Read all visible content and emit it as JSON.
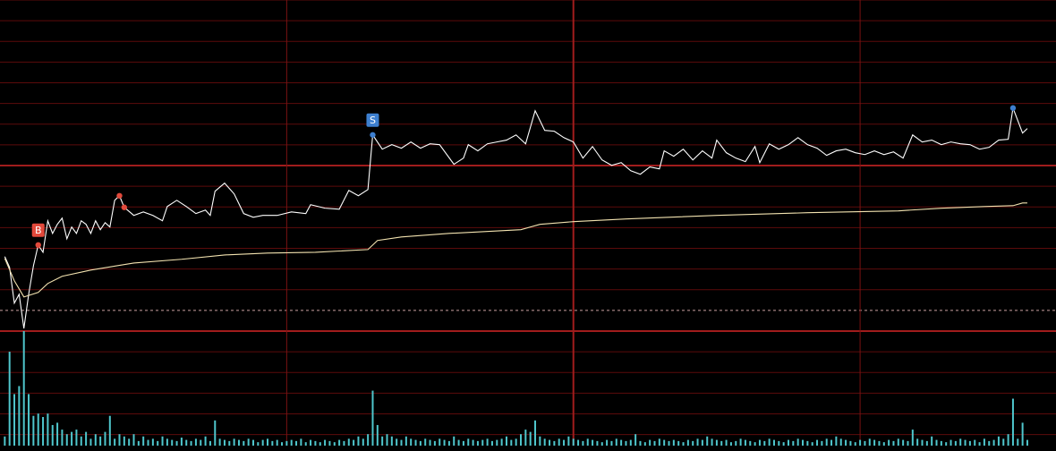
{
  "chart_data": {
    "type": "line",
    "background": "#000000",
    "xlim": [
      0,
      221
    ],
    "ylim": [
      -1,
      15
    ],
    "yticks": [
      -1,
      0,
      1,
      2,
      3,
      4,
      5,
      6,
      7,
      8,
      9,
      10,
      11,
      12,
      13,
      14,
      15
    ],
    "major_yticks": [
      -1,
      7
    ],
    "baseline": 0,
    "xticks": [
      60,
      120,
      180
    ],
    "major_xticks": [
      120
    ],
    "grid": true,
    "grid_color": "#5c0b0b",
    "major_grid_color": "#a01c1c",
    "series": [
      {
        "color": "#ffffff",
        "x": [
          1,
          2,
          3,
          4,
          5,
          6,
          7,
          8,
          9,
          10,
          11,
          12,
          13,
          14,
          15,
          16,
          17,
          18,
          19,
          20,
          21,
          22,
          23,
          24,
          25,
          26,
          28,
          30,
          32,
          34,
          35,
          37,
          39,
          41,
          43,
          44,
          45,
          47,
          49,
          51,
          53,
          55,
          58,
          61,
          64,
          65,
          68,
          71,
          73,
          75,
          77,
          78,
          80,
          82,
          84,
          86,
          88,
          90,
          92,
          95,
          97,
          98,
          100,
          102,
          104,
          106,
          108,
          110,
          112,
          114,
          116,
          118,
          120,
          122,
          124,
          126,
          128,
          130,
          132,
          134,
          136,
          138,
          139,
          141,
          143,
          145,
          147,
          149,
          150,
          152,
          154,
          156,
          158,
          159,
          161,
          163,
          165,
          167,
          169,
          171,
          173,
          175,
          177,
          179,
          181,
          183,
          185,
          187,
          189,
          191,
          193,
          195,
          197,
          199,
          201,
          203,
          205,
          207,
          209,
          211,
          212,
          214,
          215
        ],
        "values": [
          2.6,
          2.08,
          0.35,
          0.78,
          -0.87,
          0.78,
          2.16,
          3.16,
          2.81,
          4.33,
          3.72,
          4.16,
          4.46,
          3.46,
          4.03,
          3.72,
          4.33,
          4.16,
          3.72,
          4.33,
          3.9,
          4.24,
          4.03,
          5.32,
          5.54,
          4.98,
          4.59,
          4.76,
          4.59,
          4.33,
          5.02,
          5.32,
          5.02,
          4.68,
          4.85,
          4.59,
          5.76,
          6.15,
          5.63,
          4.68,
          4.5,
          4.59,
          4.59,
          4.76,
          4.68,
          5.11,
          4.94,
          4.89,
          5.8,
          5.54,
          5.84,
          8.48,
          7.79,
          8.01,
          7.84,
          8.14,
          7.84,
          8.05,
          8.01,
          7.06,
          7.36,
          8.01,
          7.71,
          8.05,
          8.14,
          8.23,
          8.48,
          8.05,
          9.65,
          8.7,
          8.66,
          8.35,
          8.14,
          7.36,
          7.92,
          7.27,
          7.01,
          7.14,
          6.75,
          6.58,
          6.93,
          6.84,
          7.71,
          7.45,
          7.79,
          7.27,
          7.71,
          7.36,
          8.23,
          7.62,
          7.36,
          7.19,
          7.92,
          7.14,
          8.05,
          7.79,
          8.01,
          8.35,
          8.01,
          7.84,
          7.49,
          7.71,
          7.79,
          7.62,
          7.53,
          7.71,
          7.53,
          7.66,
          7.36,
          8.48,
          8.14,
          8.23,
          8.01,
          8.14,
          8.05,
          8.01,
          7.79,
          7.88,
          8.23,
          8.27,
          9.78,
          8.57,
          8.79
        ]
      },
      {
        "color": "#f3e3b0",
        "x": [
          1,
          3,
          5,
          8,
          10,
          13,
          19,
          28,
          38,
          47,
          56,
          66,
          77,
          79,
          84,
          94,
          109,
          113,
          120,
          131,
          150,
          169,
          188,
          197,
          206,
          212,
          214,
          215
        ],
        "values": [
          2.51,
          1.43,
          0.65,
          0.87,
          1.3,
          1.65,
          1.95,
          2.29,
          2.47,
          2.68,
          2.77,
          2.81,
          2.94,
          3.38,
          3.55,
          3.72,
          3.9,
          4.16,
          4.29,
          4.42,
          4.59,
          4.72,
          4.81,
          4.94,
          5.02,
          5.06,
          5.19,
          5.19
        ]
      }
    ],
    "markers": [
      {
        "x": 8,
        "label": "B",
        "color": "#e2493b"
      },
      {
        "x": 25,
        "color": "#e2493b"
      },
      {
        "x": 26,
        "color": "#e2493b"
      },
      {
        "x": 78,
        "label": "S",
        "color": "#3d7fcf"
      },
      {
        "x": 212,
        "color": "#3d7fcf"
      }
    ],
    "volume": {
      "color": "#4fc6cc",
      "ylim": [
        0,
        100
      ],
      "x": [
        1,
        2,
        3,
        4,
        5,
        6,
        7,
        8,
        9,
        10,
        11,
        12,
        13,
        14,
        15,
        16,
        17,
        18,
        19,
        20,
        21,
        22,
        23,
        24,
        25,
        26,
        27,
        28,
        29,
        30,
        31,
        32,
        33,
        34,
        35,
        36,
        37,
        38,
        39,
        40,
        41,
        42,
        43,
        44,
        45,
        46,
        47,
        48,
        49,
        50,
        51,
        52,
        53,
        54,
        55,
        56,
        57,
        58,
        59,
        60,
        61,
        62,
        63,
        64,
        65,
        66,
        67,
        68,
        69,
        70,
        71,
        72,
        73,
        74,
        75,
        76,
        77,
        78,
        79,
        80,
        81,
        82,
        83,
        84,
        85,
        86,
        87,
        88,
        89,
        90,
        91,
        92,
        93,
        94,
        95,
        96,
        97,
        98,
        99,
        100,
        101,
        102,
        103,
        104,
        105,
        106,
        107,
        108,
        109,
        110,
        111,
        112,
        113,
        114,
        115,
        116,
        117,
        118,
        119,
        120,
        121,
        122,
        123,
        124,
        125,
        126,
        127,
        128,
        129,
        130,
        131,
        132,
        133,
        134,
        135,
        136,
        137,
        138,
        139,
        140,
        141,
        142,
        143,
        144,
        145,
        146,
        147,
        148,
        149,
        150,
        151,
        152,
        153,
        154,
        155,
        156,
        157,
        158,
        159,
        160,
        161,
        162,
        163,
        164,
        165,
        166,
        167,
        168,
        169,
        170,
        171,
        172,
        173,
        174,
        175,
        176,
        177,
        178,
        179,
        180,
        181,
        182,
        183,
        184,
        185,
        186,
        187,
        188,
        189,
        190,
        191,
        192,
        193,
        194,
        195,
        196,
        197,
        198,
        199,
        200,
        201,
        202,
        203,
        204,
        205,
        206,
        207,
        208,
        209,
        210,
        211,
        212,
        213,
        214,
        215
      ],
      "values": [
        8,
        82,
        45,
        52,
        100,
        45,
        26,
        28,
        25,
        28,
        18,
        20,
        14,
        10,
        12,
        14,
        8,
        12,
        6,
        10,
        8,
        12,
        26,
        6,
        10,
        8,
        6,
        10,
        4,
        8,
        5,
        6,
        4,
        8,
        6,
        5,
        4,
        7,
        5,
        4,
        6,
        5,
        8,
        4,
        22,
        6,
        5,
        4,
        6,
        5,
        4,
        6,
        5,
        3,
        5,
        6,
        4,
        5,
        3,
        4,
        5,
        4,
        6,
        3,
        5,
        4,
        3,
        5,
        4,
        3,
        5,
        4,
        6,
        5,
        8,
        6,
        10,
        48,
        18,
        8,
        10,
        8,
        6,
        5,
        8,
        6,
        5,
        4,
        6,
        5,
        4,
        6,
        5,
        4,
        8,
        5,
        4,
        6,
        5,
        4,
        5,
        6,
        4,
        5,
        6,
        8,
        5,
        6,
        10,
        14,
        12,
        22,
        8,
        6,
        5,
        4,
        6,
        5,
        8,
        6,
        5,
        4,
        6,
        5,
        4,
        3,
        5,
        4,
        6,
        5,
        4,
        5,
        10,
        4,
        3,
        5,
        4,
        6,
        5,
        4,
        5,
        4,
        3,
        5,
        4,
        6,
        5,
        8,
        6,
        5,
        4,
        5,
        3,
        4,
        6,
        5,
        4,
        3,
        5,
        4,
        6,
        5,
        4,
        3,
        5,
        4,
        6,
        5,
        4,
        3,
        5,
        4,
        6,
        5,
        8,
        6,
        5,
        4,
        3,
        5,
        4,
        6,
        5,
        4,
        3,
        5,
        4,
        6,
        5,
        4,
        14,
        6,
        5,
        4,
        8,
        5,
        4,
        3,
        5,
        4,
        6,
        5,
        4,
        5,
        3,
        6,
        4,
        5,
        8,
        6,
        10,
        41,
        6,
        20,
        5
      ]
    }
  }
}
